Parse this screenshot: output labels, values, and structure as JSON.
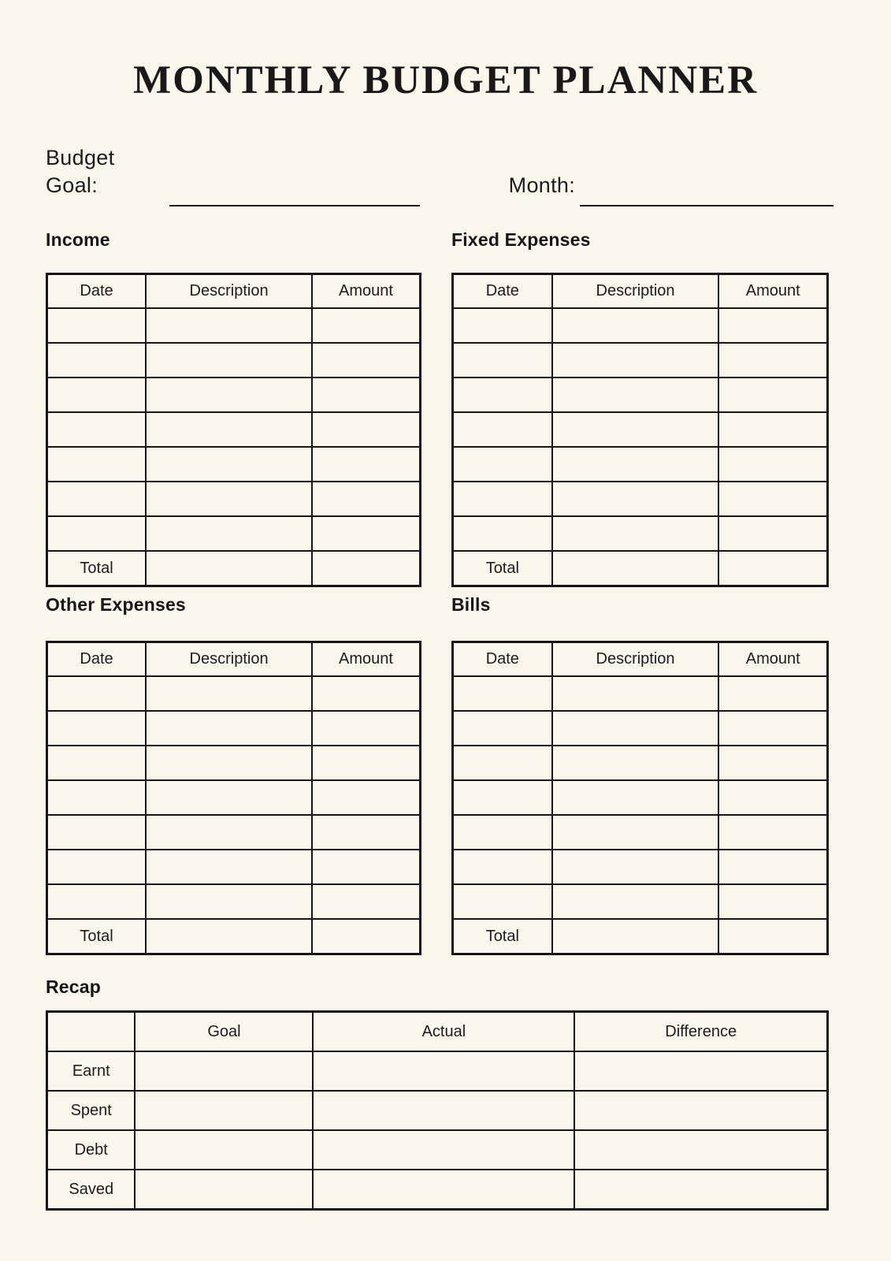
{
  "page": {
    "title": "MONTHLY BUDGET PLANNER",
    "background_color": "#F9F6EC",
    "ink_color": "#161616"
  },
  "fields": {
    "budget_goal_label": "Budget Goal:",
    "budget_goal_value": "",
    "month_label": "Month:",
    "month_value": ""
  },
  "tables": {
    "income": {
      "title": "Income",
      "columns": [
        "Date",
        "Description",
        "Amount"
      ],
      "empty_row_count": 7,
      "total_label": "Total"
    },
    "fixed_expenses": {
      "title": "Fixed Expenses",
      "columns": [
        "Date",
        "Description",
        "Amount"
      ],
      "empty_row_count": 7,
      "total_label": "Total"
    },
    "other_expenses": {
      "title": "Other Expenses",
      "columns": [
        "Date",
        "Description",
        "Amount"
      ],
      "empty_row_count": 7,
      "total_label": "Total"
    },
    "bills": {
      "title": "Bills",
      "columns": [
        "Date",
        "Description",
        "Amount"
      ],
      "empty_row_count": 7,
      "total_label": "Total"
    }
  },
  "recap": {
    "title": "Recap",
    "columns": [
      "",
      "Goal",
      "Actual",
      "Difference"
    ],
    "row_labels": [
      "Earnt",
      "Spent",
      "Debt",
      "Saved"
    ]
  }
}
